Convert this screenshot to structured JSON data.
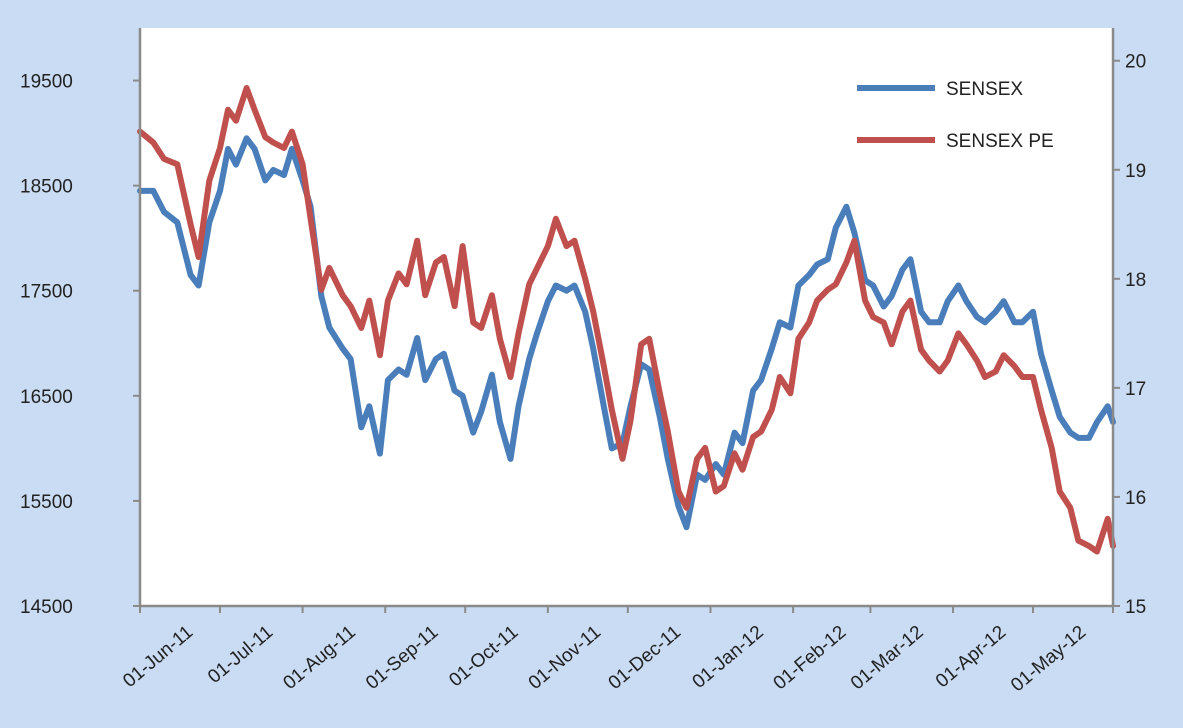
{
  "chart_data": {
    "type": "line",
    "title": "",
    "xlabel": "",
    "ylabel": "",
    "grid": false,
    "legend": "top-right",
    "x_tick_labels": [
      "01-Jun-11",
      "01-Jul-11",
      "01-Aug-11",
      "01-Sep-11",
      "01-Oct-11",
      "01-Nov-11",
      "01-Dec-11",
      "01-Jan-12",
      "01-Feb-12",
      "01-Mar-12",
      "01-Apr-12",
      "01-May-12"
    ],
    "x_range": [
      "2011-06-01",
      "2012-05-31"
    ],
    "y_left": {
      "range": [
        14500,
        20000
      ],
      "ticks": [
        14500,
        15500,
        16500,
        17500,
        18500,
        19500
      ]
    },
    "y_right": {
      "range": [
        15,
        20.3
      ],
      "ticks": [
        15,
        16,
        17,
        18,
        19,
        20
      ]
    },
    "series": [
      {
        "name": "SENSEX",
        "axis": "left",
        "color": "#4a7ebb",
        "points": [
          [
            "2011-06-01",
            18450
          ],
          [
            "2011-06-06",
            18450
          ],
          [
            "2011-06-10",
            18250
          ],
          [
            "2011-06-15",
            18150
          ],
          [
            "2011-06-20",
            17650
          ],
          [
            "2011-06-23",
            17550
          ],
          [
            "2011-06-27",
            18150
          ],
          [
            "2011-07-01",
            18450
          ],
          [
            "2011-07-04",
            18850
          ],
          [
            "2011-07-07",
            18700
          ],
          [
            "2011-07-11",
            18950
          ],
          [
            "2011-07-14",
            18850
          ],
          [
            "2011-07-18",
            18550
          ],
          [
            "2011-07-21",
            18650
          ],
          [
            "2011-07-25",
            18600
          ],
          [
            "2011-07-28",
            18850
          ],
          [
            "2011-08-01",
            18550
          ],
          [
            "2011-08-04",
            18300
          ],
          [
            "2011-08-08",
            17450
          ],
          [
            "2011-08-11",
            17150
          ],
          [
            "2011-08-16",
            16950
          ],
          [
            "2011-08-19",
            16850
          ],
          [
            "2011-08-23",
            16200
          ],
          [
            "2011-08-26",
            16400
          ],
          [
            "2011-08-30",
            15950
          ],
          [
            "2011-09-02",
            16650
          ],
          [
            "2011-09-06",
            16750
          ],
          [
            "2011-09-09",
            16700
          ],
          [
            "2011-09-13",
            17050
          ],
          [
            "2011-09-16",
            16650
          ],
          [
            "2011-09-20",
            16850
          ],
          [
            "2011-09-23",
            16900
          ],
          [
            "2011-09-27",
            16550
          ],
          [
            "2011-09-30",
            16500
          ],
          [
            "2011-10-04",
            16150
          ],
          [
            "2011-10-07",
            16350
          ],
          [
            "2011-10-11",
            16700
          ],
          [
            "2011-10-14",
            16250
          ],
          [
            "2011-10-18",
            15900
          ],
          [
            "2011-10-21",
            16400
          ],
          [
            "2011-10-25",
            16850
          ],
          [
            "2011-10-28",
            17100
          ],
          [
            "2011-11-01",
            17400
          ],
          [
            "2011-11-04",
            17550
          ],
          [
            "2011-11-08",
            17500
          ],
          [
            "2011-11-11",
            17550
          ],
          [
            "2011-11-15",
            17300
          ],
          [
            "2011-11-18",
            16950
          ],
          [
            "2011-11-22",
            16400
          ],
          [
            "2011-11-25",
            16000
          ],
          [
            "2011-11-29",
            16050
          ],
          [
            "2011-12-02",
            16400
          ],
          [
            "2011-12-06",
            16800
          ],
          [
            "2011-12-09",
            16750
          ],
          [
            "2011-12-13",
            16300
          ],
          [
            "2011-12-16",
            15900
          ],
          [
            "2011-12-20",
            15450
          ],
          [
            "2011-12-23",
            15250
          ],
          [
            "2011-12-27",
            15750
          ],
          [
            "2011-12-30",
            15700
          ],
          [
            "2012-01-03",
            15850
          ],
          [
            "2012-01-06",
            15750
          ],
          [
            "2012-01-10",
            16150
          ],
          [
            "2012-01-13",
            16050
          ],
          [
            "2012-01-17",
            16550
          ],
          [
            "2012-01-20",
            16650
          ],
          [
            "2012-01-24",
            16950
          ],
          [
            "2012-01-27",
            17200
          ],
          [
            "2012-01-31",
            17150
          ],
          [
            "2012-02-03",
            17550
          ],
          [
            "2012-02-07",
            17650
          ],
          [
            "2012-02-10",
            17750
          ],
          [
            "2012-02-14",
            17800
          ],
          [
            "2012-02-17",
            18100
          ],
          [
            "2012-02-21",
            18300
          ],
          [
            "2012-02-24",
            18050
          ],
          [
            "2012-02-28",
            17600
          ],
          [
            "2012-03-02",
            17550
          ],
          [
            "2012-03-06",
            17350
          ],
          [
            "2012-03-09",
            17450
          ],
          [
            "2012-03-13",
            17700
          ],
          [
            "2012-03-16",
            17800
          ],
          [
            "2012-03-20",
            17300
          ],
          [
            "2012-03-23",
            17200
          ],
          [
            "2012-03-27",
            17200
          ],
          [
            "2012-03-30",
            17400
          ],
          [
            "2012-04-03",
            17550
          ],
          [
            "2012-04-06",
            17400
          ],
          [
            "2012-04-10",
            17250
          ],
          [
            "2012-04-13",
            17200
          ],
          [
            "2012-04-17",
            17300
          ],
          [
            "2012-04-20",
            17400
          ],
          [
            "2012-04-24",
            17200
          ],
          [
            "2012-04-27",
            17200
          ],
          [
            "2012-05-01",
            17300
          ],
          [
            "2012-05-04",
            16900
          ],
          [
            "2012-05-08",
            16550
          ],
          [
            "2012-05-11",
            16300
          ],
          [
            "2012-05-15",
            16150
          ],
          [
            "2012-05-18",
            16100
          ],
          [
            "2012-05-22",
            16100
          ],
          [
            "2012-05-25",
            16250
          ],
          [
            "2012-05-29",
            16400
          ],
          [
            "2012-05-31",
            16250
          ]
        ]
      },
      {
        "name": "SENSEX PE",
        "axis": "right",
        "color": "#c0504d",
        "points": [
          [
            "2011-06-01",
            19.35
          ],
          [
            "2011-06-06",
            19.25
          ],
          [
            "2011-06-10",
            19.1
          ],
          [
            "2011-06-15",
            19.05
          ],
          [
            "2011-06-20",
            18.5
          ],
          [
            "2011-06-23",
            18.2
          ],
          [
            "2011-06-27",
            18.9
          ],
          [
            "2011-07-01",
            19.2
          ],
          [
            "2011-07-04",
            19.55
          ],
          [
            "2011-07-07",
            19.45
          ],
          [
            "2011-07-11",
            19.75
          ],
          [
            "2011-07-14",
            19.55
          ],
          [
            "2011-07-18",
            19.3
          ],
          [
            "2011-07-21",
            19.25
          ],
          [
            "2011-07-25",
            19.2
          ],
          [
            "2011-07-28",
            19.35
          ],
          [
            "2011-08-01",
            19.05
          ],
          [
            "2011-08-04",
            18.55
          ],
          [
            "2011-08-08",
            17.9
          ],
          [
            "2011-08-11",
            18.1
          ],
          [
            "2011-08-16",
            17.85
          ],
          [
            "2011-08-19",
            17.75
          ],
          [
            "2011-08-23",
            17.55
          ],
          [
            "2011-08-26",
            17.8
          ],
          [
            "2011-08-30",
            17.3
          ],
          [
            "2011-09-02",
            17.8
          ],
          [
            "2011-09-06",
            18.05
          ],
          [
            "2011-09-09",
            17.95
          ],
          [
            "2011-09-13",
            18.35
          ],
          [
            "2011-09-16",
            17.85
          ],
          [
            "2011-09-20",
            18.15
          ],
          [
            "2011-09-23",
            18.2
          ],
          [
            "2011-09-27",
            17.75
          ],
          [
            "2011-09-30",
            18.3
          ],
          [
            "2011-10-04",
            17.6
          ],
          [
            "2011-10-07",
            17.55
          ],
          [
            "2011-10-11",
            17.85
          ],
          [
            "2011-10-14",
            17.45
          ],
          [
            "2011-10-18",
            17.1
          ],
          [
            "2011-10-21",
            17.5
          ],
          [
            "2011-10-25",
            17.95
          ],
          [
            "2011-10-28",
            18.1
          ],
          [
            "2011-11-01",
            18.3
          ],
          [
            "2011-11-04",
            18.55
          ],
          [
            "2011-11-08",
            18.3
          ],
          [
            "2011-11-11",
            18.35
          ],
          [
            "2011-11-15",
            18.0
          ],
          [
            "2011-11-18",
            17.7
          ],
          [
            "2011-11-22",
            17.2
          ],
          [
            "2011-11-25",
            16.8
          ],
          [
            "2011-11-29",
            16.35
          ],
          [
            "2011-12-02",
            16.7
          ],
          [
            "2011-12-06",
            17.4
          ],
          [
            "2011-12-09",
            17.45
          ],
          [
            "2011-12-13",
            16.95
          ],
          [
            "2011-12-16",
            16.6
          ],
          [
            "2011-12-20",
            16.05
          ],
          [
            "2011-12-23",
            15.9
          ],
          [
            "2011-12-27",
            16.35
          ],
          [
            "2011-12-30",
            16.45
          ],
          [
            "2012-01-03",
            16.05
          ],
          [
            "2012-01-06",
            16.1
          ],
          [
            "2012-01-10",
            16.4
          ],
          [
            "2012-01-13",
            16.25
          ],
          [
            "2012-01-17",
            16.55
          ],
          [
            "2012-01-20",
            16.6
          ],
          [
            "2012-01-24",
            16.8
          ],
          [
            "2012-01-27",
            17.1
          ],
          [
            "2012-01-31",
            16.95
          ],
          [
            "2012-02-03",
            17.45
          ],
          [
            "2012-02-07",
            17.6
          ],
          [
            "2012-02-10",
            17.8
          ],
          [
            "2012-02-14",
            17.9
          ],
          [
            "2012-02-17",
            17.95
          ],
          [
            "2012-02-21",
            18.15
          ],
          [
            "2012-02-24",
            18.35
          ],
          [
            "2012-02-28",
            17.8
          ],
          [
            "2012-03-02",
            17.65
          ],
          [
            "2012-03-06",
            17.6
          ],
          [
            "2012-03-09",
            17.4
          ],
          [
            "2012-03-13",
            17.7
          ],
          [
            "2012-03-16",
            17.8
          ],
          [
            "2012-03-20",
            17.35
          ],
          [
            "2012-03-23",
            17.25
          ],
          [
            "2012-03-27",
            17.15
          ],
          [
            "2012-03-30",
            17.25
          ],
          [
            "2012-04-03",
            17.5
          ],
          [
            "2012-04-06",
            17.4
          ],
          [
            "2012-04-10",
            17.25
          ],
          [
            "2012-04-13",
            17.1
          ],
          [
            "2012-04-17",
            17.15
          ],
          [
            "2012-04-20",
            17.3
          ],
          [
            "2012-04-24",
            17.2
          ],
          [
            "2012-04-27",
            17.1
          ],
          [
            "2012-05-01",
            17.1
          ],
          [
            "2012-05-04",
            16.8
          ],
          [
            "2012-05-08",
            16.45
          ],
          [
            "2012-05-11",
            16.05
          ],
          [
            "2012-05-15",
            15.9
          ],
          [
            "2012-05-18",
            15.6
          ],
          [
            "2012-05-22",
            15.55
          ],
          [
            "2012-05-25",
            15.5
          ],
          [
            "2012-05-29",
            15.8
          ],
          [
            "2012-05-31",
            15.55
          ]
        ]
      }
    ]
  }
}
